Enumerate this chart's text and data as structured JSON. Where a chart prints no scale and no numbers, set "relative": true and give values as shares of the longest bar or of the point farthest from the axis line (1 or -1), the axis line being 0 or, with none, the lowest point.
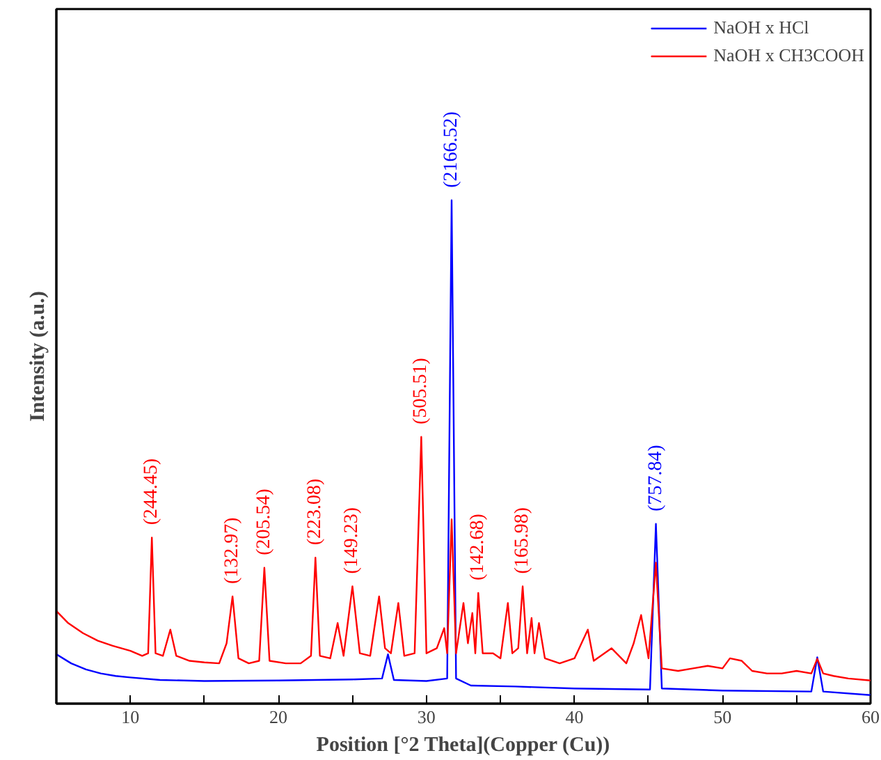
{
  "chart_data": {
    "type": "line",
    "relative": true,
    "xlabel": "Position [°2 Theta](Copper (Cu))",
    "ylabel": "Intensity (a.u.)",
    "xlim": [
      5,
      60
    ],
    "xticks": [
      {
        "value": 5,
        "label": null
      },
      10,
      {
        "value": 15,
        "label": null
      },
      20,
      {
        "value": 25,
        "label": null
      },
      30,
      {
        "value": 35,
        "label": null
      },
      40,
      {
        "value": 45,
        "label": null
      },
      50,
      {
        "value": 55,
        "label": null
      },
      60
    ],
    "legend": "top right",
    "grid": false,
    "series": [
      {
        "name": "NaOH x HCl",
        "color": "#0000ff",
        "x": [
          5,
          6,
          7,
          8,
          9,
          10,
          12,
          15,
          20,
          25,
          27.0,
          27.4,
          27.8,
          30,
          31.4,
          31.7,
          32.0,
          33,
          36,
          40,
          45.1,
          45.5,
          45.9,
          50,
          56.0,
          56.4,
          56.8,
          60
        ],
        "values": [
          0.098,
          0.08,
          0.068,
          0.06,
          0.055,
          0.052,
          0.047,
          0.045,
          0.046,
          0.048,
          0.05,
          0.098,
          0.047,
          0.045,
          0.05,
          1.0,
          0.05,
          0.036,
          0.034,
          0.03,
          0.028,
          0.357,
          0.03,
          0.026,
          0.024,
          0.092,
          0.024,
          0.017
        ]
      },
      {
        "name": "NaOH x CH3COOH",
        "color": "#ff0000",
        "x": [
          5.0,
          5.8,
          6.8,
          7.8,
          8.8,
          10.0,
          10.8,
          11.2,
          11.45,
          11.7,
          12.2,
          12.7,
          13.1,
          14,
          15,
          16,
          16.5,
          16.9,
          17.3,
          18,
          18.7,
          19.05,
          19.4,
          20.5,
          21.5,
          22.2,
          22.5,
          22.8,
          23.5,
          24.0,
          24.4,
          25.0,
          25.5,
          26.2,
          26.8,
          27.2,
          27.6,
          28.1,
          28.5,
          29.2,
          29.65,
          30.0,
          30.7,
          31.2,
          31.4,
          31.7,
          32.0,
          32.5,
          32.8,
          33.1,
          33.3,
          33.5,
          33.8,
          34.5,
          35.0,
          35.5,
          35.8,
          36.2,
          36.5,
          36.8,
          37.1,
          37.3,
          37.6,
          38,
          39,
          40,
          40.9,
          41.3,
          42.5,
          43.5,
          44.0,
          44.5,
          45.0,
          45.5,
          45.9,
          47,
          48,
          49,
          50,
          50.5,
          51.3,
          52,
          53,
          54,
          55,
          56.0,
          56.4,
          56.8,
          57.5,
          58.5,
          60
        ],
        "values": [
          0.184,
          0.16,
          0.14,
          0.125,
          0.115,
          0.105,
          0.095,
          0.1,
          0.33,
          0.1,
          0.095,
          0.147,
          0.095,
          0.085,
          0.082,
          0.08,
          0.12,
          0.213,
          0.09,
          0.08,
          0.085,
          0.27,
          0.085,
          0.08,
          0.08,
          0.095,
          0.29,
          0.095,
          0.09,
          0.16,
          0.095,
          0.233,
          0.1,
          0.095,
          0.213,
          0.11,
          0.1,
          0.2,
          0.095,
          0.1,
          0.53,
          0.1,
          0.11,
          0.15,
          0.1,
          0.366,
          0.1,
          0.2,
          0.12,
          0.18,
          0.1,
          0.22,
          0.1,
          0.1,
          0.09,
          0.2,
          0.1,
          0.11,
          0.233,
          0.1,
          0.17,
          0.1,
          0.16,
          0.09,
          0.08,
          0.09,
          0.147,
          0.085,
          0.11,
          0.08,
          0.12,
          0.176,
          0.09,
          0.28,
          0.07,
          0.065,
          0.07,
          0.075,
          0.07,
          0.09,
          0.085,
          0.065,
          0.06,
          0.06,
          0.065,
          0.06,
          0.089,
          0.06,
          0.055,
          0.05,
          0.046
        ]
      }
    ],
    "annotations": [
      {
        "text": "(244.45)",
        "x": 11.45,
        "y": 0.33
      },
      {
        "text": "(132.97)",
        "x": 16.9,
        "y": 0.213
      },
      {
        "text": "(205.54)",
        "x": 19.05,
        "y": 0.27
      },
      {
        "text": "(223.08)",
        "x": 22.5,
        "y": 0.29
      },
      {
        "text": "(149.23)",
        "x": 25.0,
        "y": 0.233
      },
      {
        "text": "(505.51)",
        "x": 29.65,
        "y": 0.53
      },
      {
        "text": "(2166.52)",
        "x": 31.7,
        "y": 1.0
      },
      {
        "text": "(142.68)",
        "x": 33.5,
        "y": 0.22
      },
      {
        "text": "(165.98)",
        "x": 36.5,
        "y": 0.233
      },
      {
        "text": "(757.84)",
        "x": 45.5,
        "y": 0.357
      }
    ]
  }
}
